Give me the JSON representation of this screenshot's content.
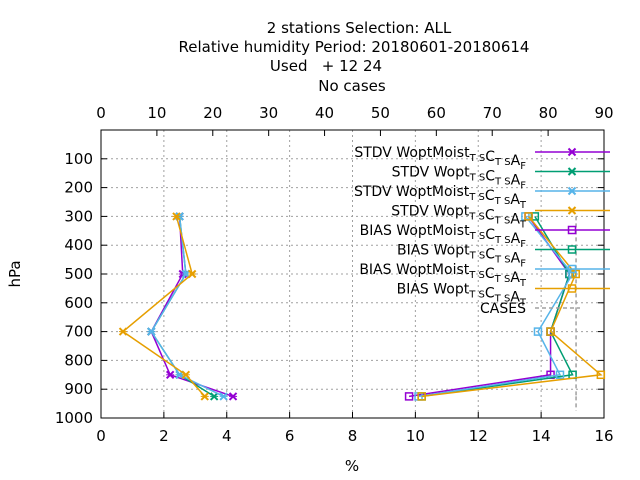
{
  "chart_data": {
    "type": "line",
    "title_lines": [
      "2 stations Selection: ALL",
      "Relative humidity  Period: 20180601-20180614",
      "Used   + 12 24",
      "No cases"
    ],
    "xlabel": "%",
    "ylabel": "hPa",
    "xlim": [
      0,
      16
    ],
    "x2lim": [
      0,
      90
    ],
    "ylim": [
      1000,
      0
    ],
    "x_ticks": [
      "0",
      "2",
      "4",
      "6",
      "8",
      "10",
      "12",
      "14",
      "16"
    ],
    "x2_ticks": [
      "0",
      "10",
      "20",
      "30",
      "40",
      "50",
      "60",
      "70",
      "80",
      "90"
    ],
    "y_ticks": [
      "100",
      "200",
      "300",
      "400",
      "500",
      "600",
      "700",
      "800",
      "900",
      "1000"
    ],
    "grid": true,
    "legend_position": "top-right",
    "pressure": [
      300,
      500,
      700,
      850,
      925
    ],
    "series": [
      {
        "name": "STDV WoptMoist",
        "sub": "T S",
        "mid": "C",
        "sub2": "T S",
        "end": "A",
        "sub3": "F",
        "color": "#9400d3",
        "marker": "x",
        "style": "line",
        "values": [
          2.5,
          2.6,
          1.6,
          2.2,
          4.2
        ]
      },
      {
        "name": "STDV Wopt",
        "sub": "T S",
        "mid": "C",
        "sub2": "T S",
        "end": "A",
        "sub3": "F",
        "color": "#009e73",
        "marker": "x",
        "style": "line",
        "values": [
          2.5,
          2.7,
          1.6,
          2.5,
          3.6
        ]
      },
      {
        "name": "STDV WoptMoist",
        "sub": "T S",
        "mid": "C",
        "sub2": "T S",
        "end": "A",
        "sub3": "T",
        "color": "#56b4e9",
        "marker": "x",
        "style": "line",
        "values": [
          2.5,
          2.7,
          1.6,
          2.5,
          3.9
        ]
      },
      {
        "name": "STDV Wopt",
        "sub": "T S",
        "mid": "C",
        "sub2": "T S",
        "end": "A",
        "sub3": "T",
        "color": "#e69f00",
        "marker": "x",
        "style": "line",
        "values": [
          2.4,
          2.9,
          0.7,
          2.7,
          3.3
        ]
      },
      {
        "name": "BIAS WoptMoist",
        "sub": "T S",
        "mid": "C",
        "sub2": "T S",
        "end": "A",
        "sub3": "F",
        "color": "#9400d3",
        "marker": "square",
        "style": "line",
        "values": [
          13.6,
          14.9,
          14.3,
          14.3,
          9.8
        ]
      },
      {
        "name": "BIAS Wopt",
        "sub": "T S",
        "mid": "C",
        "sub2": "T S",
        "end": "A",
        "sub3": "F",
        "color": "#009e73",
        "marker": "square",
        "style": "line",
        "values": [
          13.8,
          14.9,
          14.3,
          15.0,
          10.2
        ]
      },
      {
        "name": "BIAS WoptMoist",
        "sub": "T S",
        "mid": "C",
        "sub2": "T S",
        "end": "A",
        "sub3": "T",
        "color": "#56b4e9",
        "marker": "square",
        "style": "line",
        "values": [
          13.5,
          15.0,
          13.9,
          14.6,
          10.1
        ]
      },
      {
        "name": "BIAS Wopt",
        "sub": "T S",
        "mid": "C",
        "sub2": "T S",
        "end": "A",
        "sub3": "T",
        "color": "#e69f00",
        "marker": "square",
        "style": "line",
        "values": [
          13.6,
          15.1,
          14.3,
          15.9,
          10.2
        ]
      }
    ],
    "cases": {
      "name": "CASES",
      "color": "#a0a0a0",
      "style": "dashed",
      "axis": "x2",
      "pressure": [
        300,
        500,
        700,
        850,
        925
      ],
      "values": [
        85,
        85,
        85,
        85,
        85
      ]
    }
  }
}
